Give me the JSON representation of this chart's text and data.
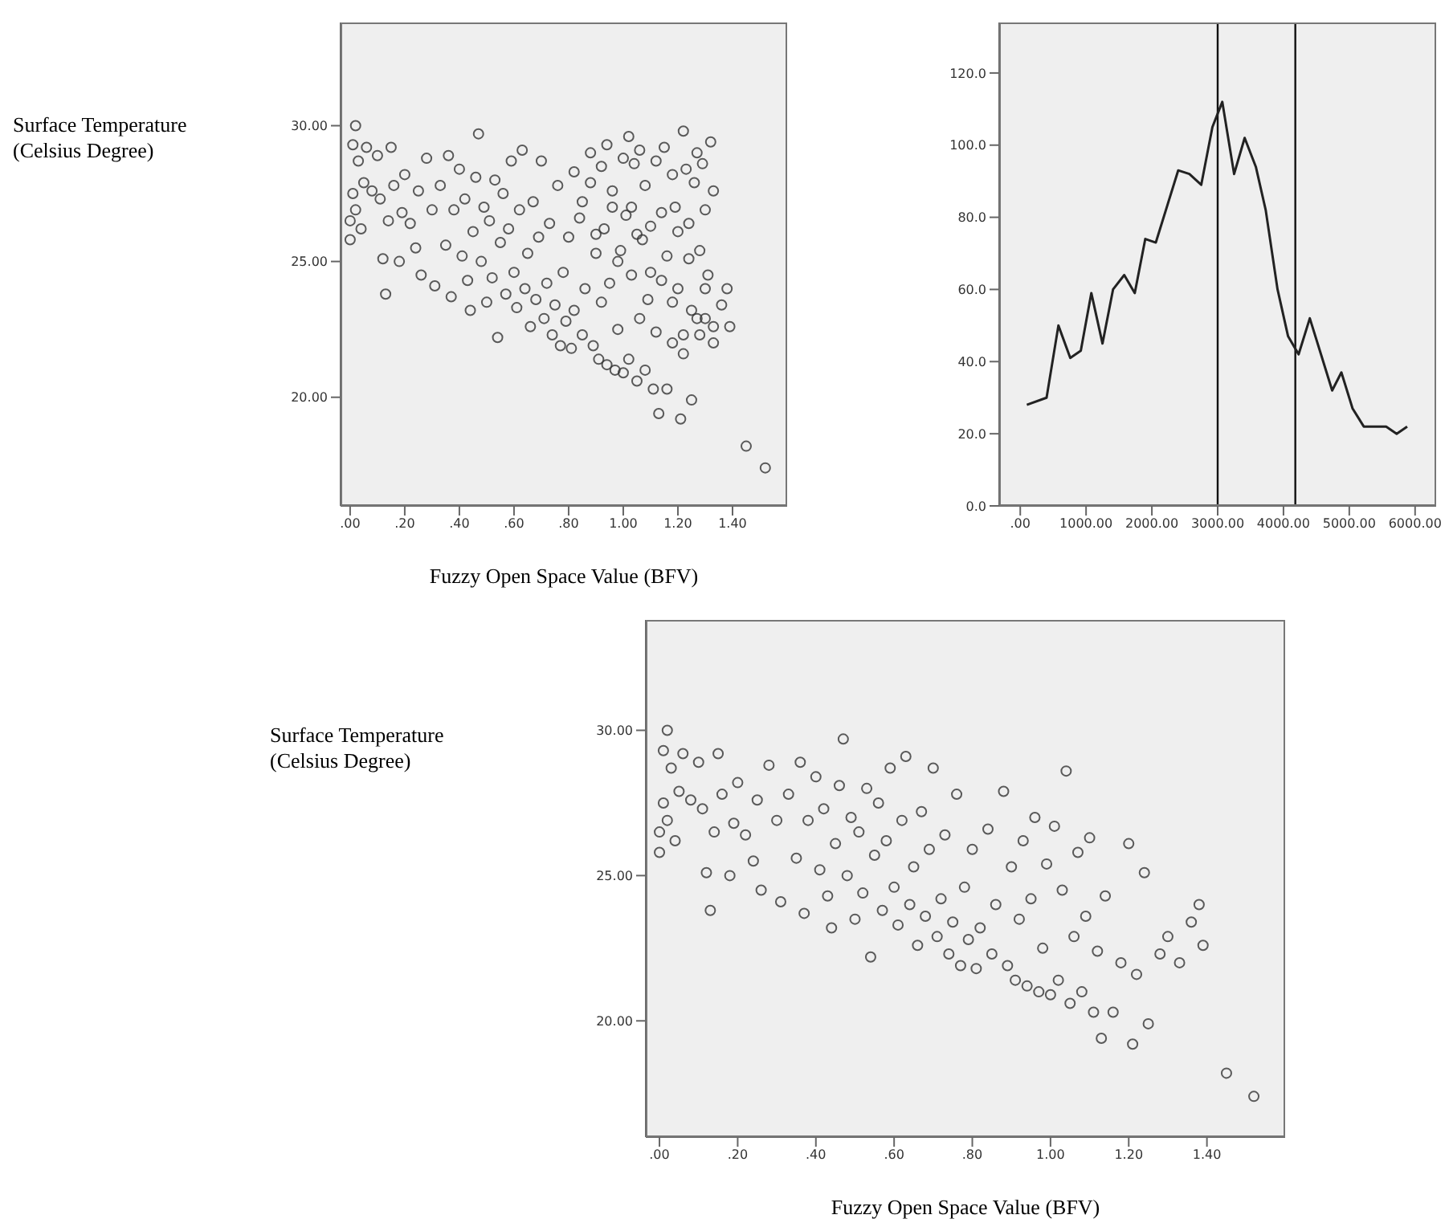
{
  "chart_data": [
    {
      "type": "scatter",
      "ylabel": "Surface Temperature (Celsius Degree)",
      "xlabel": "Fuzzy Open Space Value (BFV)",
      "color": "#333333",
      "marker": "circle",
      "grid": false,
      "x": [
        0.0,
        0.0,
        0.01,
        0.02,
        0.01,
        0.03,
        0.02,
        0.05,
        0.06,
        0.04,
        0.08,
        0.1,
        0.11,
        0.12,
        0.13,
        0.14,
        0.15,
        0.16,
        0.18,
        0.19,
        0.2,
        0.22,
        0.24,
        0.25,
        0.26,
        0.28,
        0.3,
        0.31,
        0.33,
        0.35,
        0.36,
        0.37,
        0.38,
        0.4,
        0.41,
        0.42,
        0.43,
        0.44,
        0.45,
        0.46,
        0.47,
        0.48,
        0.49,
        0.5,
        0.51,
        0.52,
        0.53,
        0.54,
        0.55,
        0.56,
        0.57,
        0.58,
        0.59,
        0.6,
        0.61,
        0.62,
        0.63,
        0.64,
        0.65,
        0.66,
        0.67,
        0.68,
        0.69,
        0.7,
        0.71,
        0.72,
        0.73,
        0.74,
        0.75,
        0.76,
        0.77,
        0.78,
        0.79,
        0.8,
        0.81,
        0.82,
        0.84,
        0.85,
        0.86,
        0.88,
        0.89,
        0.9,
        0.91,
        0.92,
        0.93,
        0.94,
        0.95,
        0.96,
        0.97,
        0.98,
        0.99,
        1.0,
        1.01,
        1.02,
        1.03,
        1.04,
        1.05,
        1.06,
        1.07,
        1.08,
        1.09,
        1.1,
        1.11,
        1.12,
        1.13,
        1.14,
        1.16,
        1.18,
        1.2,
        1.21,
        1.22,
        1.24,
        1.25,
        1.28,
        1.3,
        1.33,
        1.36,
        1.38,
        1.39,
        1.45,
        1.52,
        0.82,
        0.85,
        0.88,
        0.9,
        0.92,
        0.94,
        0.96,
        0.98,
        1.0,
        1.02,
        1.03,
        1.05,
        1.06,
        1.08,
        1.1,
        1.12,
        1.14,
        1.15,
        1.16,
        1.18,
        1.19,
        1.2,
        1.22,
        1.23,
        1.24,
        1.25,
        1.26,
        1.27,
        1.28,
        1.29,
        1.3,
        1.31,
        1.32,
        1.33,
        1.27,
        1.22,
        1.18,
        1.33,
        1.3
      ],
      "values": [
        26.5,
        25.8,
        29.3,
        30.0,
        27.5,
        28.7,
        26.9,
        27.9,
        29.2,
        26.2,
        27.6,
        28.9,
        27.3,
        25.1,
        23.8,
        26.5,
        29.2,
        27.8,
        25.0,
        26.8,
        28.2,
        26.4,
        25.5,
        27.6,
        24.5,
        28.8,
        26.9,
        24.1,
        27.8,
        25.6,
        28.9,
        23.7,
        26.9,
        28.4,
        25.2,
        27.3,
        24.3,
        23.2,
        26.1,
        28.1,
        29.7,
        25.0,
        27.0,
        23.5,
        26.5,
        24.4,
        28.0,
        22.2,
        25.7,
        27.5,
        23.8,
        26.2,
        28.7,
        24.6,
        23.3,
        26.9,
        29.1,
        24.0,
        25.3,
        22.6,
        27.2,
        23.6,
        25.9,
        28.7,
        22.9,
        24.2,
        26.4,
        22.3,
        23.4,
        27.8,
        21.9,
        24.6,
        22.8,
        25.9,
        21.8,
        23.2,
        26.6,
        22.3,
        24.0,
        27.9,
        21.9,
        25.3,
        21.4,
        23.5,
        26.2,
        21.2,
        24.2,
        27.0,
        21.0,
        22.5,
        25.4,
        20.9,
        26.7,
        21.4,
        24.5,
        28.6,
        20.6,
        22.9,
        25.8,
        21.0,
        23.6,
        26.3,
        20.3,
        22.4,
        19.4,
        24.3,
        20.3,
        22.0,
        26.1,
        19.2,
        21.6,
        25.1,
        19.9,
        22.3,
        22.9,
        22.0,
        23.4,
        24.0,
        22.6,
        18.2,
        17.4,
        28.3,
        27.2,
        29.0,
        26.0,
        28.5,
        29.3,
        27.6,
        25.0,
        28.8,
        29.6,
        27.0,
        26.0,
        29.1,
        27.8,
        24.6,
        28.7,
        26.8,
        29.2,
        25.2,
        28.2,
        27.0,
        24.0,
        29.8,
        28.4,
        26.4,
        23.2,
        27.9,
        29.0,
        25.4,
        28.6,
        26.9,
        24.5,
        29.4,
        27.6,
        22.9,
        22.3,
        23.5,
        22.6,
        24.0
      ],
      "xlim": [
        -0.035,
        1.6
      ],
      "ylim": [
        16.0,
        33.8
      ],
      "xticks": [
        {
          "value": 0,
          "label": ".00"
        },
        {
          "value": 0.2,
          "label": ".20"
        },
        {
          "value": 0.4,
          "label": ".40"
        },
        {
          "value": 0.6,
          "label": ".60"
        },
        {
          "value": 0.8,
          "label": ".80"
        },
        {
          "value": 1.0,
          "label": "1.00"
        },
        {
          "value": 1.2,
          "label": "1.20"
        },
        {
          "value": 1.4,
          "label": "1.40"
        }
      ],
      "yticks": [
        {
          "value": 20,
          "label": "20.00"
        },
        {
          "value": 25,
          "label": "25.00"
        },
        {
          "value": 30,
          "label": "30.00"
        }
      ]
    },
    {
      "type": "line",
      "color": "#222222",
      "marker": "none",
      "grid": false,
      "x": [
        100,
        400,
        580,
        760,
        920,
        1080,
        1250,
        1410,
        1580,
        1740,
        1900,
        2060,
        2400,
        2570,
        2750,
        2920,
        3070,
        3250,
        3410,
        3580,
        3730,
        3910,
        4070,
        4230,
        4400,
        4570,
        4740,
        4880,
        5050,
        5220,
        5400,
        5560,
        5720,
        5880
      ],
      "values": [
        28,
        30,
        50,
        41,
        43,
        59,
        45,
        60,
        64,
        59,
        74,
        73,
        93,
        92,
        89,
        105,
        112,
        92,
        102,
        94,
        82,
        60,
        47,
        42,
        52,
        42,
        32,
        37,
        27,
        22,
        22,
        22,
        20,
        22
      ],
      "xlim": [
        -320,
        6320
      ],
      "ylim": [
        0,
        134
      ],
      "xticks": [
        {
          "value": 0,
          "label": ".00"
        },
        {
          "value": 1000,
          "label": "1000.00"
        },
        {
          "value": 2000,
          "label": "2000.00"
        },
        {
          "value": 3000,
          "label": "3000.00"
        },
        {
          "value": 4000,
          "label": "4000.00"
        },
        {
          "value": 5000,
          "label": "5000.00"
        },
        {
          "value": 6000,
          "label": "6000.00"
        }
      ],
      "yticks": [
        {
          "value": 0,
          "label": "0.0"
        },
        {
          "value": 20,
          "label": "20.0"
        },
        {
          "value": 40,
          "label": "40.0"
        },
        {
          "value": 60,
          "label": "60.0"
        },
        {
          "value": 80,
          "label": "80.0"
        },
        {
          "value": 100,
          "label": "100.0"
        },
        {
          "value": 120,
          "label": "120.0"
        }
      ],
      "ref_lines": [
        {
          "axis": "x",
          "value": 3000,
          "color": "#111111"
        },
        {
          "axis": "x",
          "value": 4180,
          "color": "#111111"
        }
      ]
    },
    {
      "type": "scatter",
      "ylabel": "Surface Temperature (Celsius Degree)",
      "xlabel": "Fuzzy Open Space Value (BFV)",
      "color": "#333333",
      "marker": "circle",
      "grid": false,
      "x": [
        0.0,
        0.0,
        0.01,
        0.02,
        0.01,
        0.03,
        0.02,
        0.05,
        0.06,
        0.04,
        0.08,
        0.1,
        0.11,
        0.12,
        0.13,
        0.14,
        0.15,
        0.16,
        0.18,
        0.19,
        0.2,
        0.22,
        0.24,
        0.25,
        0.26,
        0.28,
        0.3,
        0.31,
        0.33,
        0.35,
        0.36,
        0.37,
        0.38,
        0.4,
        0.41,
        0.42,
        0.43,
        0.44,
        0.45,
        0.46,
        0.47,
        0.48,
        0.49,
        0.5,
        0.51,
        0.52,
        0.53,
        0.54,
        0.55,
        0.56,
        0.57,
        0.58,
        0.59,
        0.6,
        0.61,
        0.62,
        0.63,
        0.64,
        0.65,
        0.66,
        0.67,
        0.68,
        0.69,
        0.7,
        0.71,
        0.72,
        0.73,
        0.74,
        0.75,
        0.76,
        0.77,
        0.78,
        0.79,
        0.8,
        0.81,
        0.82,
        0.84,
        0.85,
        0.86,
        0.88,
        0.89,
        0.9,
        0.91,
        0.92,
        0.93,
        0.94,
        0.95,
        0.96,
        0.97,
        0.98,
        0.99,
        1.0,
        1.01,
        1.02,
        1.03,
        1.04,
        1.05,
        1.06,
        1.07,
        1.08,
        1.09,
        1.1,
        1.11,
        1.12,
        1.13,
        1.14,
        1.16,
        1.18,
        1.2,
        1.21,
        1.22,
        1.24,
        1.25,
        1.28,
        1.3,
        1.33,
        1.36,
        1.38,
        1.39,
        1.45,
        1.52
      ],
      "values": [
        26.5,
        25.8,
        29.3,
        30.0,
        27.5,
        28.7,
        26.9,
        27.9,
        29.2,
        26.2,
        27.6,
        28.9,
        27.3,
        25.1,
        23.8,
        26.5,
        29.2,
        27.8,
        25.0,
        26.8,
        28.2,
        26.4,
        25.5,
        27.6,
        24.5,
        28.8,
        26.9,
        24.1,
        27.8,
        25.6,
        28.9,
        23.7,
        26.9,
        28.4,
        25.2,
        27.3,
        24.3,
        23.2,
        26.1,
        28.1,
        29.7,
        25.0,
        27.0,
        23.5,
        26.5,
        24.4,
        28.0,
        22.2,
        25.7,
        27.5,
        23.8,
        26.2,
        28.7,
        24.6,
        23.3,
        26.9,
        29.1,
        24.0,
        25.3,
        22.6,
        27.2,
        23.6,
        25.9,
        28.7,
        22.9,
        24.2,
        26.4,
        22.3,
        23.4,
        27.8,
        21.9,
        24.6,
        22.8,
        25.9,
        21.8,
        23.2,
        26.6,
        22.3,
        24.0,
        27.9,
        21.9,
        25.3,
        21.4,
        23.5,
        26.2,
        21.2,
        24.2,
        27.0,
        21.0,
        22.5,
        25.4,
        20.9,
        26.7,
        21.4,
        24.5,
        28.6,
        20.6,
        22.9,
        25.8,
        21.0,
        23.6,
        26.3,
        20.3,
        22.4,
        19.4,
        24.3,
        20.3,
        22.0,
        26.1,
        19.2,
        21.6,
        25.1,
        19.9,
        22.3,
        22.9,
        22.0,
        23.4,
        24.0,
        22.6,
        18.2,
        17.4
      ],
      "xlim": [
        -0.035,
        1.6
      ],
      "ylim": [
        16.0,
        33.8
      ],
      "xticks": [
        {
          "value": 0,
          "label": ".00"
        },
        {
          "value": 0.2,
          "label": ".20"
        },
        {
          "value": 0.4,
          "label": ".40"
        },
        {
          "value": 0.6,
          "label": ".60"
        },
        {
          "value": 0.8,
          "label": ".80"
        },
        {
          "value": 1.0,
          "label": "1.00"
        },
        {
          "value": 1.2,
          "label": "1.20"
        },
        {
          "value": 1.4,
          "label": "1.40"
        }
      ],
      "yticks": [
        {
          "value": 20,
          "label": "20.00"
        },
        {
          "value": 25,
          "label": "25.00"
        },
        {
          "value": 30,
          "label": "30.00"
        }
      ]
    }
  ]
}
